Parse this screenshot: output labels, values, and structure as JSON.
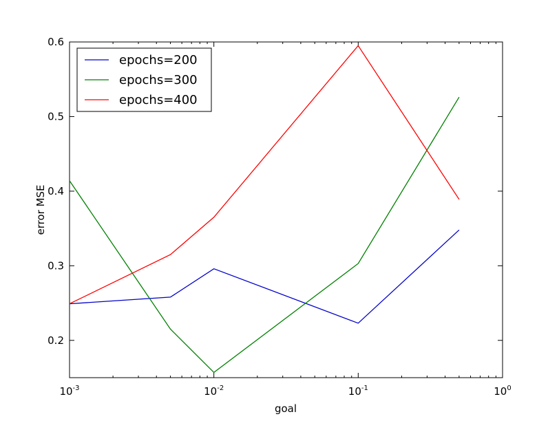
{
  "chart_data": {
    "type": "line",
    "xscale": "log",
    "xlabel": "goal",
    "ylabel": "error MSE",
    "xlim": [
      0.001,
      1
    ],
    "ylim": [
      0.15,
      0.6
    ],
    "grid": false,
    "legend_position": "top-left",
    "x_ticks": [
      {
        "value": 0.001,
        "base": "10",
        "exp": "-3"
      },
      {
        "value": 0.01,
        "base": "10",
        "exp": "-2"
      },
      {
        "value": 0.1,
        "base": "10",
        "exp": "-1"
      },
      {
        "value": 1,
        "base": "10",
        "exp": "0"
      }
    ],
    "y_ticks": [
      {
        "value": 0.2,
        "label": "0.2"
      },
      {
        "value": 0.3,
        "label": "0.3"
      },
      {
        "value": 0.4,
        "label": "0.4"
      },
      {
        "value": 0.5,
        "label": "0.5"
      },
      {
        "value": 0.6,
        "label": "0.6"
      }
    ],
    "x": [
      0.001,
      0.005,
      0.01,
      0.1,
      0.5
    ],
    "series": [
      {
        "name": "epochs=200",
        "color": "#0000cc",
        "values": [
          0.249,
          0.258,
          0.296,
          0.223,
          0.348
        ]
      },
      {
        "name": "epochs=300",
        "color": "#008000",
        "values": [
          0.414,
          0.215,
          0.157,
          0.303,
          0.526
        ]
      },
      {
        "name": "epochs=400",
        "color": "#ff0000",
        "values": [
          0.249,
          0.315,
          0.365,
          0.595,
          0.389
        ]
      }
    ]
  }
}
